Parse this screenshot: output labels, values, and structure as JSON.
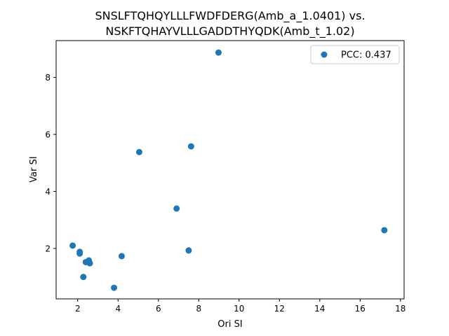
{
  "chart_data": {
    "type": "scatter",
    "title": [
      "SNSLFTQHQYLLLFWDFDERG(Amb_a_1.0401) vs.",
      "NSKFTQHAYVLLLGADDTHYQDK(Amb_t_1.02)"
    ],
    "xlabel": "Ori SI",
    "ylabel": "Var SI",
    "xlim": [
      0.93,
      18.18
    ],
    "ylim": [
      0.23,
      9.29
    ],
    "xticks": [
      2,
      4,
      6,
      8,
      10,
      12,
      14,
      16,
      18
    ],
    "yticks": [
      2,
      4,
      6,
      8
    ],
    "grid": false,
    "legend_position": "top-right",
    "series": [
      {
        "name": "PCC: 0.437",
        "color": "#1f77b4",
        "points": [
          {
            "x": 1.75,
            "y": 2.1
          },
          {
            "x": 2.1,
            "y": 1.88
          },
          {
            "x": 2.1,
            "y": 1.82
          },
          {
            "x": 2.28,
            "y": 1.0
          },
          {
            "x": 2.4,
            "y": 1.52
          },
          {
            "x": 2.55,
            "y": 1.58
          },
          {
            "x": 2.6,
            "y": 1.48
          },
          {
            "x": 3.8,
            "y": 0.62
          },
          {
            "x": 4.18,
            "y": 1.73
          },
          {
            "x": 5.05,
            "y": 5.38
          },
          {
            "x": 6.9,
            "y": 3.4
          },
          {
            "x": 7.5,
            "y": 1.93
          },
          {
            "x": 7.62,
            "y": 5.58
          },
          {
            "x": 8.98,
            "y": 8.87
          },
          {
            "x": 17.2,
            "y": 2.64
          }
        ]
      }
    ]
  }
}
